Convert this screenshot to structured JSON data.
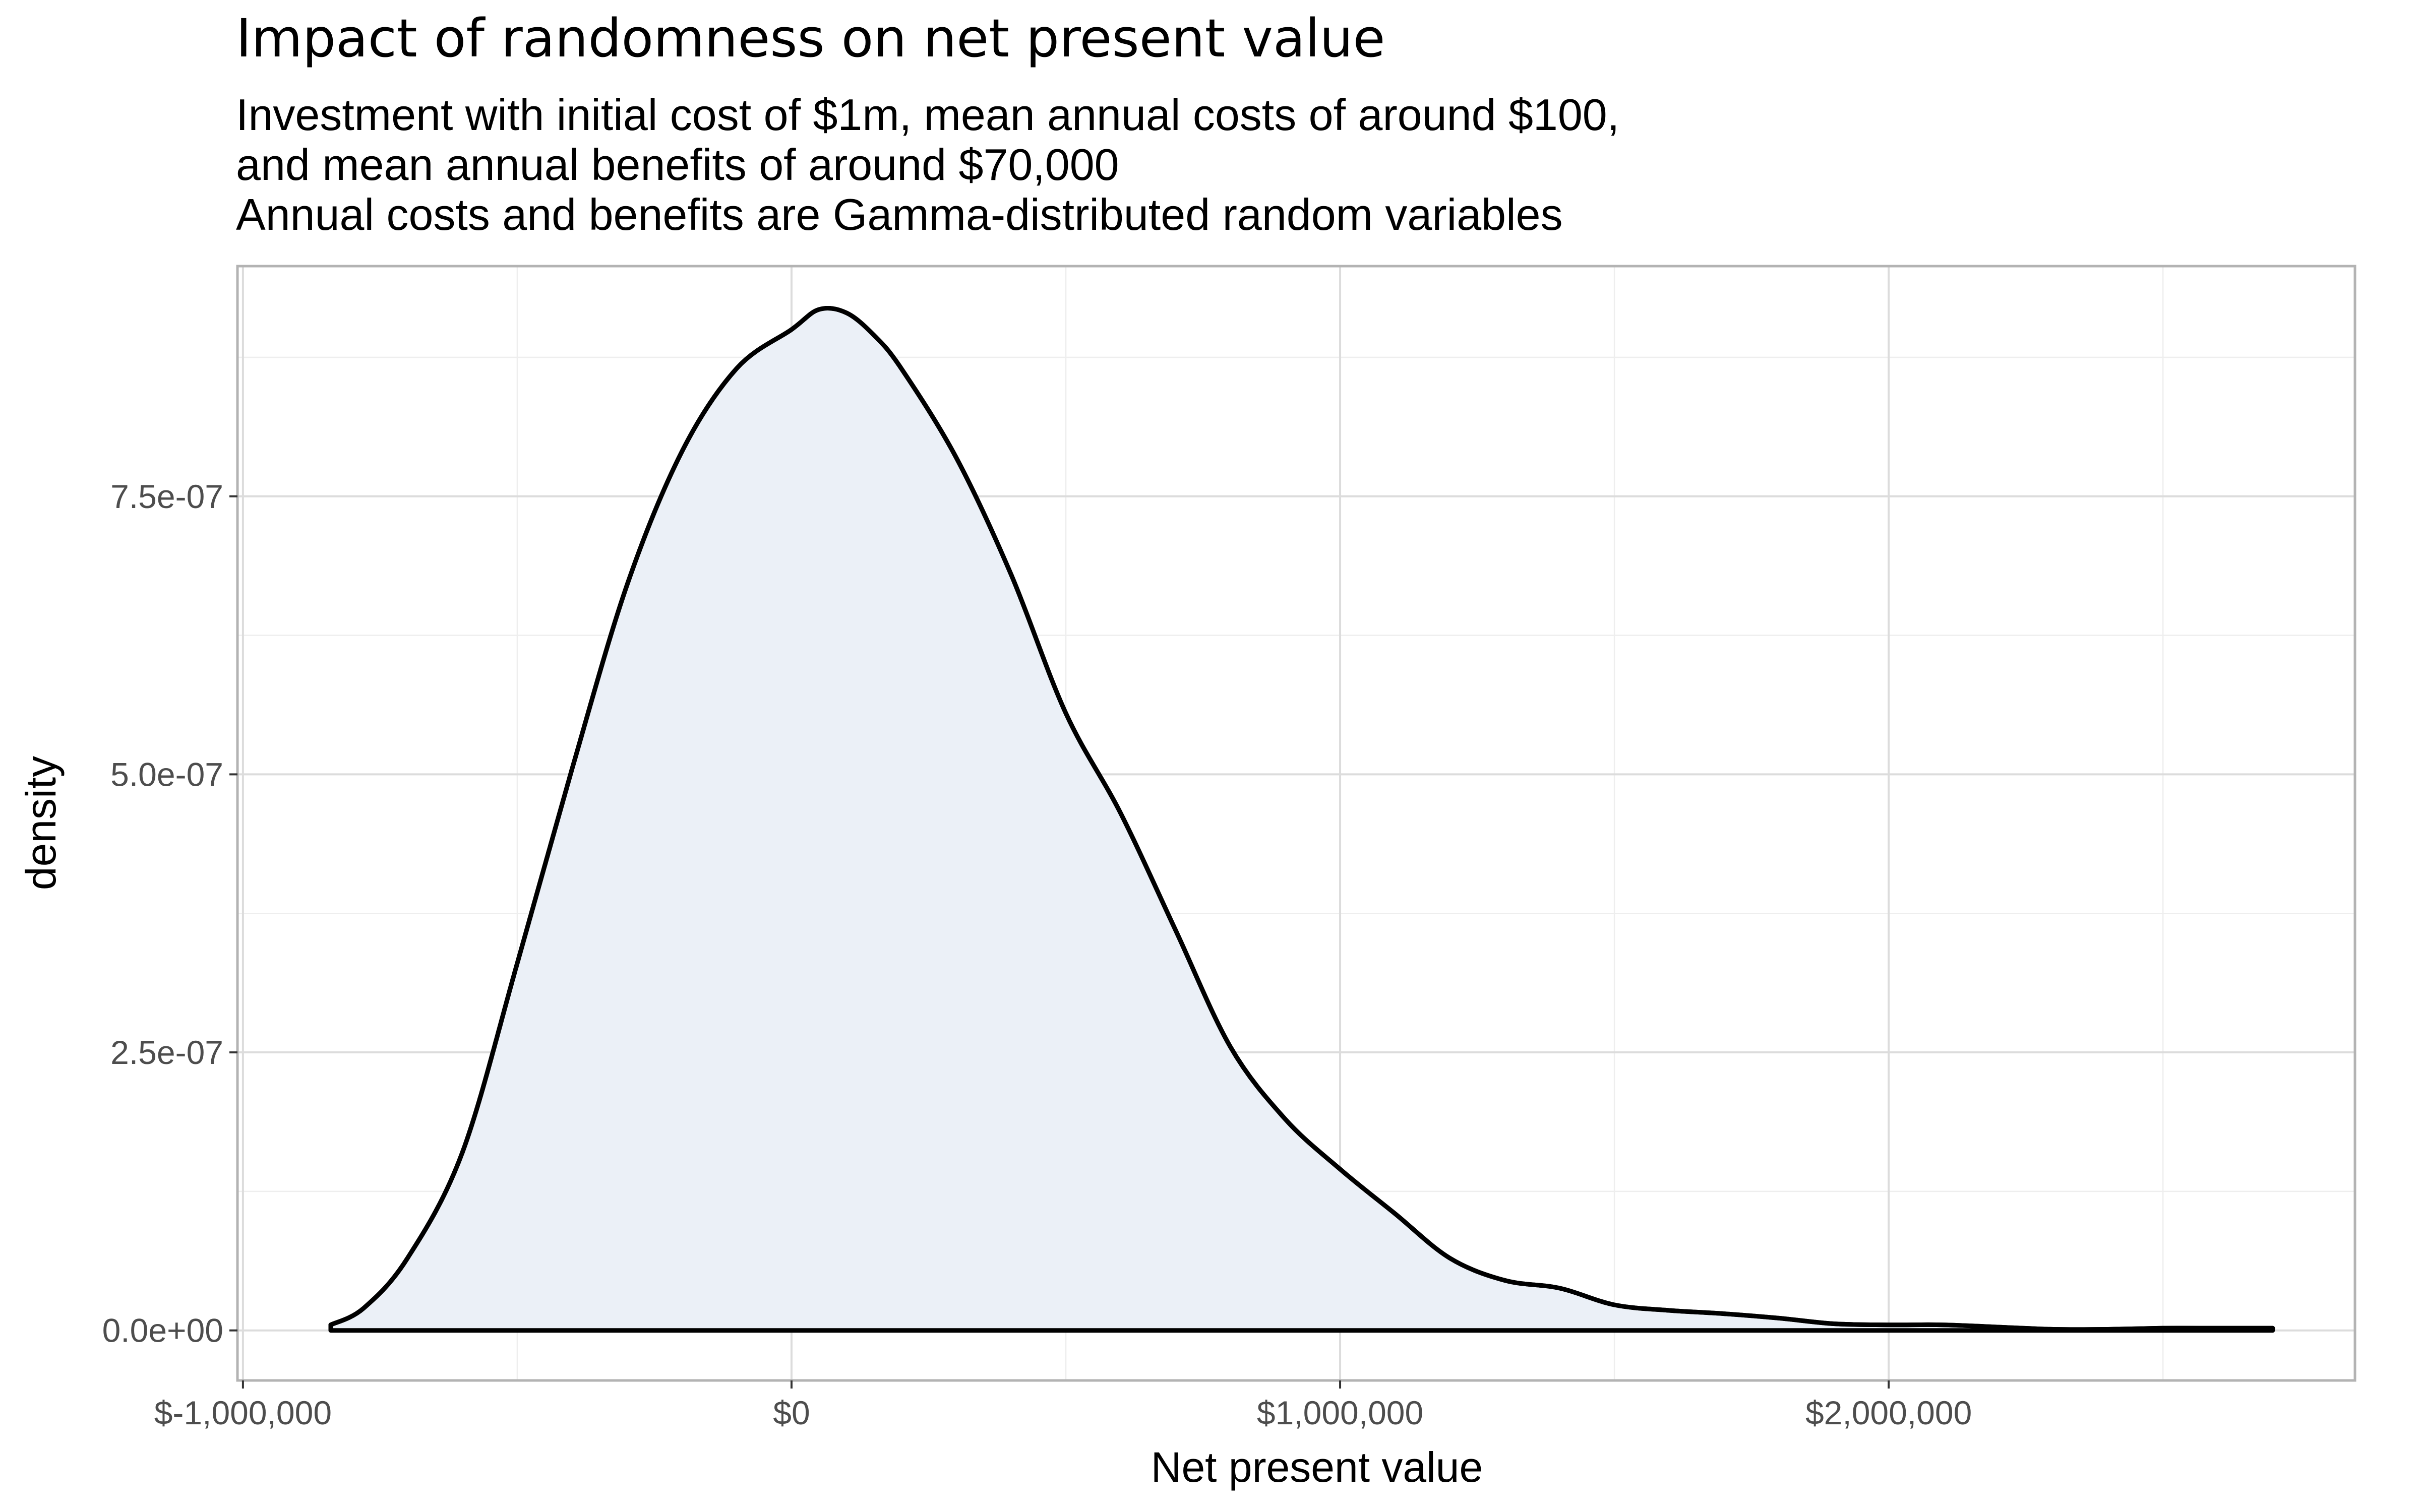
{
  "chart_data": {
    "type": "area",
    "title": "Impact of randomness on net present value",
    "subtitle_lines": [
      "Investment with initial cost of $1m, mean annual costs of around $100,",
      "and mean annual benefits of around $70,000",
      "Annual costs and benefits are Gamma-distributed random variables"
    ],
    "xlabel": "Net present value",
    "ylabel": "density",
    "xlim": [
      -1010000,
      2850000
    ],
    "ylim": [
      -4.5e-08,
      9.57e-07
    ],
    "x_ticks": [
      -1000000,
      0,
      1000000,
      2000000
    ],
    "x_tick_labels": [
      "$-1,000,000",
      "$0",
      "$1,000,000",
      "$2,000,000"
    ],
    "y_ticks": [
      0,
      2.5e-07,
      5e-07,
      7.5e-07
    ],
    "y_tick_labels": [
      "0.0e+00",
      "2.5e-07",
      "5.0e-07",
      "7.5e-07"
    ],
    "grid": true,
    "colors": {
      "fill": "#ebf0f7",
      "line": "#000000",
      "grid_major": "#dcdcdc",
      "grid_minor": "#eeeeee",
      "panel_border": "#b3b3b3"
    },
    "series": [
      {
        "x": [
          -840000,
          -780000,
          -700000,
          -600000,
          -500000,
          -400000,
          -300000,
          -200000,
          -100000,
          0,
          50000,
          100000,
          150000,
          200000,
          300000,
          400000,
          500000,
          600000,
          700000,
          800000,
          900000,
          1000000,
          1100000,
          1200000,
          1300000,
          1400000,
          1500000,
          1600000,
          1700000,
          1800000,
          1900000,
          2000000,
          2100000,
          2200000,
          2300000,
          2400000,
          2500000,
          2600000,
          2700000
        ],
        "y": [
          5e-09,
          2e-08,
          6.5e-08,
          1.6e-07,
          3.3e-07,
          5.05e-07,
          6.7e-07,
          7.9e-07,
          8.65e-07,
          9e-07,
          9.18e-07,
          9.15e-07,
          8.95e-07,
          8.65e-07,
          7.85e-07,
          6.8e-07,
          5.55e-07,
          4.65e-07,
          3.6e-07,
          2.55e-07,
          1.9e-07,
          1.45e-07,
          1.05e-07,
          6.5e-08,
          4.5e-08,
          3.8e-08,
          2.3e-08,
          1.8e-08,
          1.5e-08,
          1.1e-08,
          6e-09,
          5e-09,
          5e-09,
          3e-09,
          1e-09,
          1e-09,
          2e-09,
          2e-09,
          2e-09
        ]
      }
    ]
  }
}
